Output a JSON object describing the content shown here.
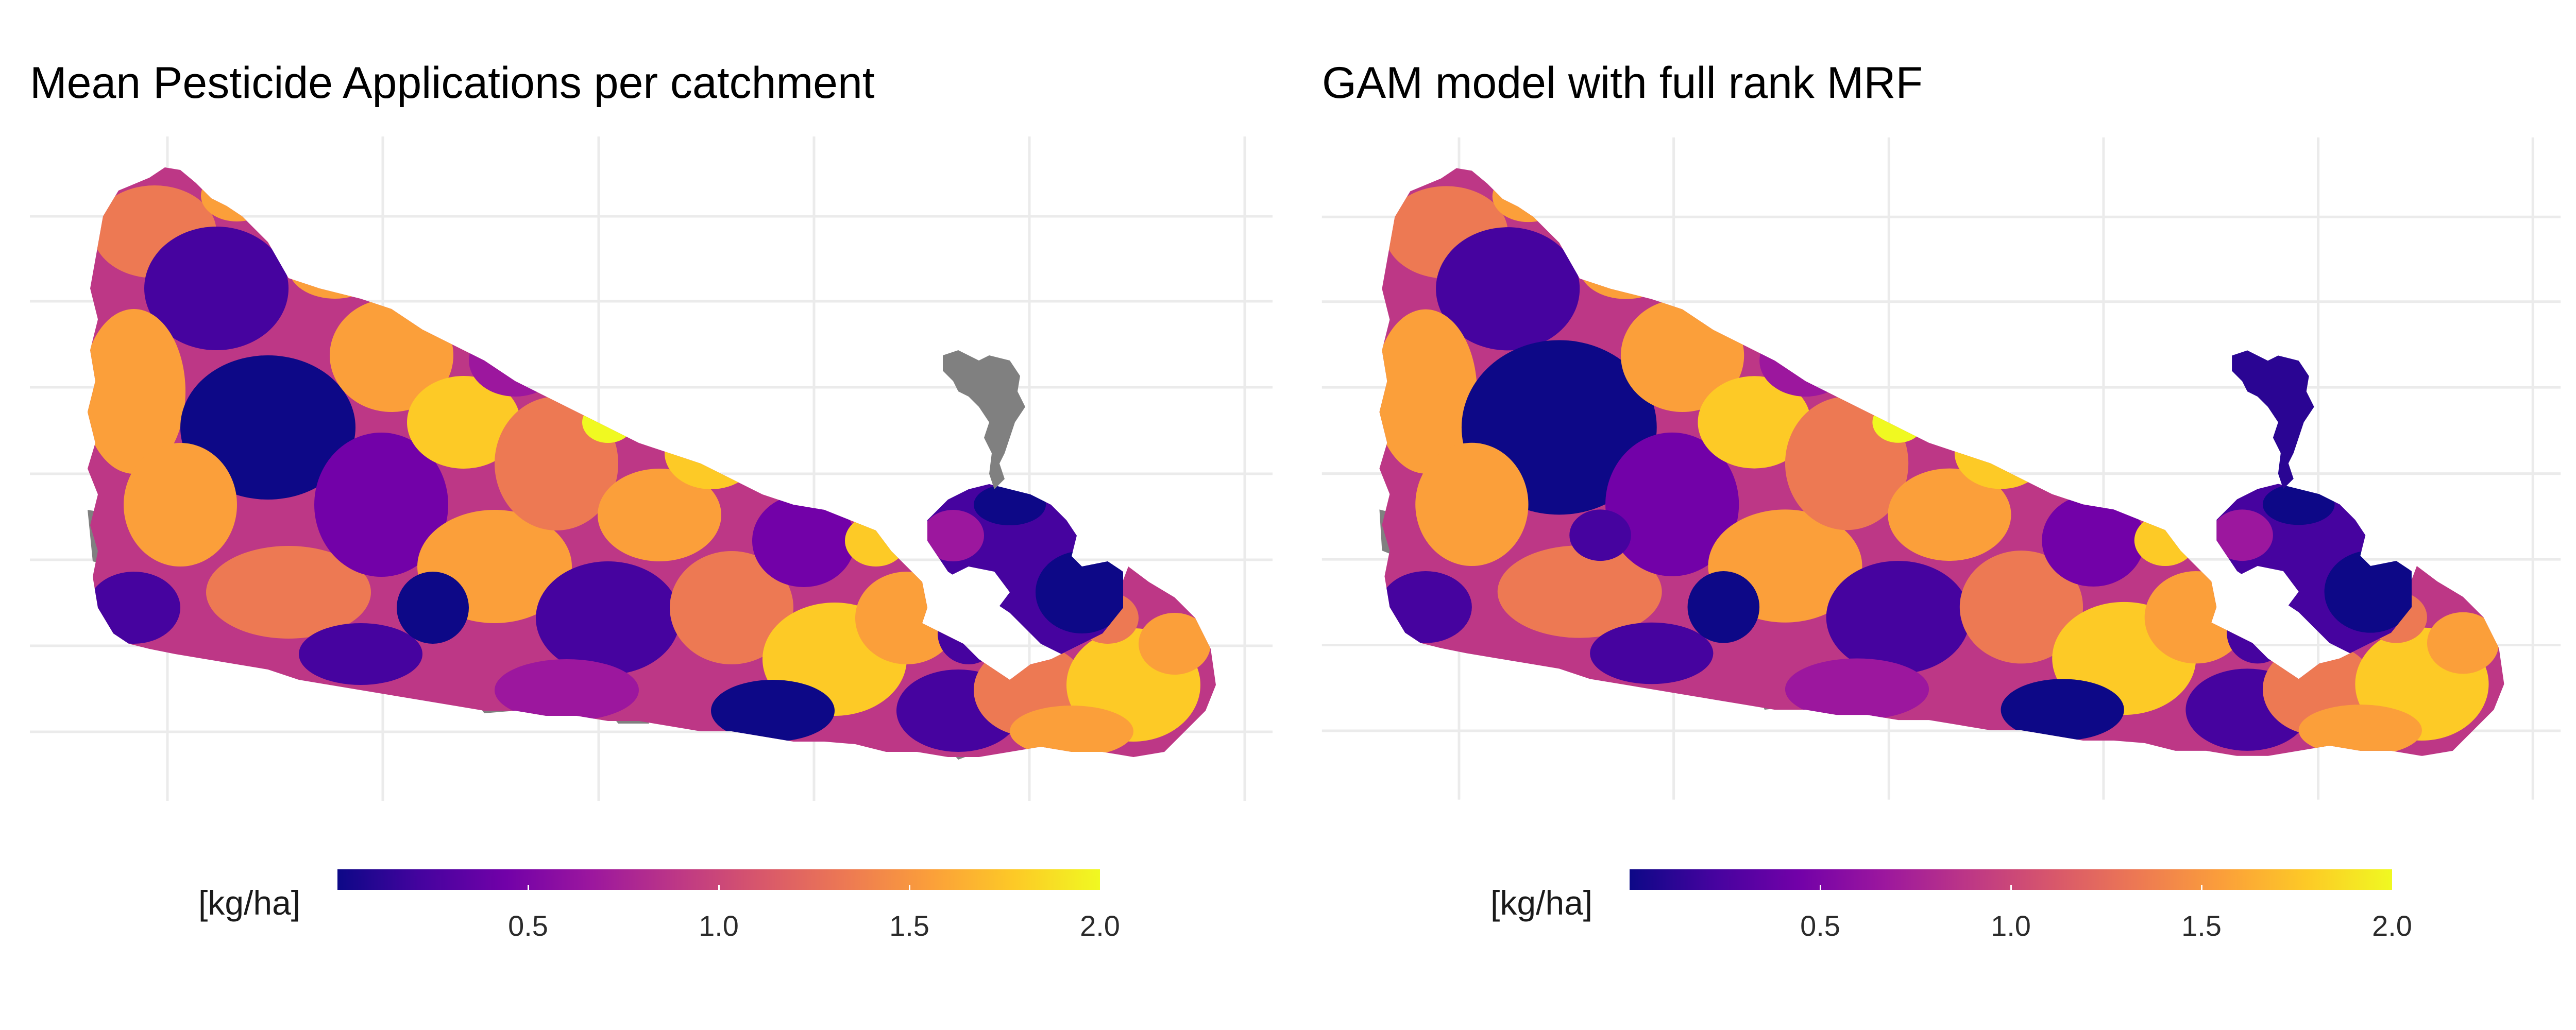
{
  "panels": [
    {
      "title": "Mean Pesticide Applications per catchment",
      "legend": {
        "title": "[kg/ha]",
        "ticks": [
          "0.5",
          "1.0",
          "1.5",
          "2.0"
        ],
        "range": [
          0,
          2.0
        ],
        "palette": "plasma",
        "colors": [
          "#0d0887",
          "#46039f",
          "#7201a8",
          "#9c179e",
          "#bd3786",
          "#d8576b",
          "#ed7953",
          "#fb9f3a",
          "#fdca26",
          "#f0f921"
        ]
      },
      "missing_color": "#808080",
      "detached_region_value": "missing"
    },
    {
      "title": "GAM model with full rank MRF",
      "legend": {
        "title": "[kg/ha]",
        "ticks": [
          "0.5",
          "1.0",
          "1.5",
          "2.0"
        ],
        "range": [
          0,
          2.0
        ],
        "palette": "plasma",
        "colors": [
          "#0d0887",
          "#46039f",
          "#7201a8",
          "#9c179e",
          "#bd3786",
          "#d8576b",
          "#ed7953",
          "#fb9f3a",
          "#fdca26",
          "#f0f921"
        ]
      },
      "missing_color": "#808080",
      "detached_region_value": "low"
    }
  ]
}
